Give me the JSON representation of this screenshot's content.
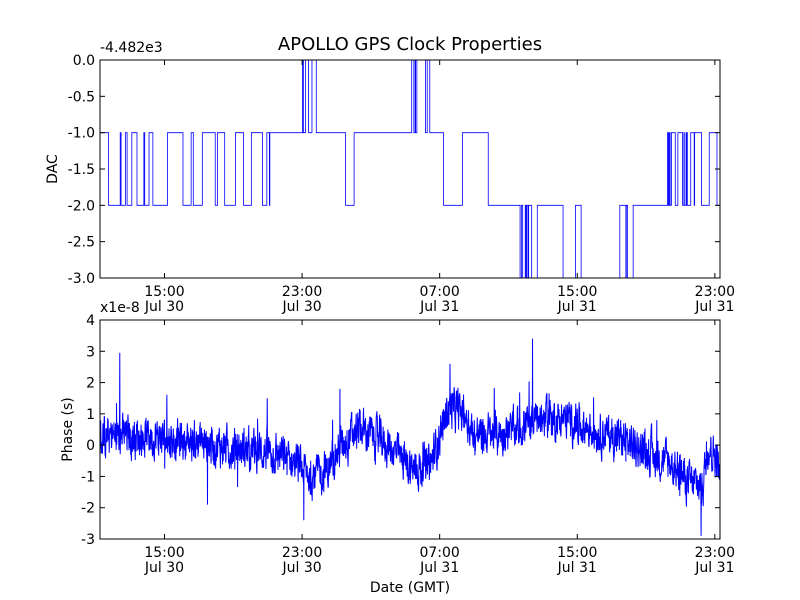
{
  "title": "APOLLO GPS Clock Properties",
  "chart_data": [
    {
      "type": "line",
      "panel": "top",
      "ylabel": "DAC",
      "xlabel": "",
      "offset_label": "-4.482e3",
      "ylim": [
        -3.0,
        0.0
      ],
      "yticks": [
        "0.0",
        "-0.5",
        "-1.0",
        "-1.5",
        "-2.0",
        "-2.5",
        "-3.0"
      ],
      "xticks": [
        {
          "time": "15:00",
          "date": "Jul 30"
        },
        {
          "time": "23:00",
          "date": "Jul 30"
        },
        {
          "time": "07:00",
          "date": "Jul 31"
        },
        {
          "time": "15:00",
          "date": "Jul 31"
        },
        {
          "time": "23:00",
          "date": "Jul 31"
        }
      ],
      "xlim_hours": [
        11.25,
        47.3
      ],
      "color": "#0000ff",
      "series": [
        {
          "name": "DAC",
          "description": "integer DAC steps between -3 and 0 (offset -4482)"
        }
      ]
    },
    {
      "type": "line",
      "panel": "bottom",
      "ylabel": "Phase (s)",
      "xlabel": "Date (GMT)",
      "offset_label": "x1e-8",
      "ylim": [
        -3,
        4
      ],
      "yticks": [
        "4",
        "3",
        "2",
        "1",
        "0",
        "-1",
        "-2",
        "-3"
      ],
      "xticks": [
        {
          "time": "15:00",
          "date": "Jul 30"
        },
        {
          "time": "23:00",
          "date": "Jul 30"
        },
        {
          "time": "07:00",
          "date": "Jul 31"
        },
        {
          "time": "15:00",
          "date": "Jul 31"
        },
        {
          "time": "23:00",
          "date": "Jul 31"
        }
      ],
      "xlim_hours": [
        11.25,
        47.3
      ],
      "color": "#0000ff",
      "series": [
        {
          "name": "Phase",
          "description": "noisy phase trace approx -3 to 3.4 (x1e-8 s)"
        }
      ]
    }
  ]
}
